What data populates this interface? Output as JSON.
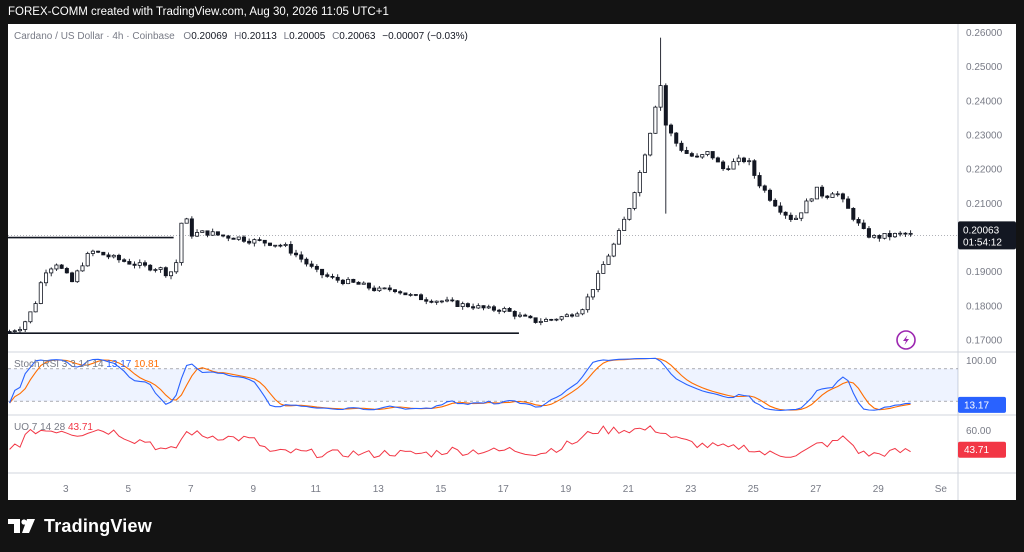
{
  "header": {
    "text": "FOREX-COMM created with TradingView.com, Aug 30, 2026 11:05 UTC+1"
  },
  "legend": {
    "symbol": "Cardano / US Dollar · 4h · Coinbase",
    "o_label": "O",
    "o_value": "0.20069",
    "h_label": "H",
    "h_value": "0.20113",
    "l_label": "L",
    "l_value": "0.20005",
    "c_label": "C",
    "c_value": "0.20063",
    "change": "−0.00007 (−0.03%)"
  },
  "price_tag": {
    "price": "0.20063",
    "countdown": "01:54:12",
    "color": "#131722"
  },
  "indicators": {
    "stoch": {
      "label": "Stoch RSI 3 3 14 14",
      "k_value": "13.17",
      "d_value": "10.81",
      "badge": "13.17",
      "k_color": "#2962ff",
      "d_color": "#ff6d00",
      "band_top": "100.00"
    },
    "uo": {
      "label": "UO 7 14 28",
      "value": "43.71",
      "badge": "43.71",
      "color": "#f23645",
      "axis_label": "60.00"
    }
  },
  "footer": {
    "brand": "TradingView",
    "logo": "tradingview-logo-icon"
  },
  "colors": {
    "bull": "#ffffff",
    "bear": "#131722",
    "grid": "#d1d4dc",
    "axis_text": "#787b86",
    "flash_icon": "#9c27b0"
  },
  "chart_data": {
    "type": "candlestick",
    "title": "Cardano / US Dollar · 4h · Coinbase",
    "y_ticks": [
      0.17,
      0.18,
      0.19,
      0.2,
      0.21,
      0.22,
      0.23,
      0.24,
      0.25,
      0.26
    ],
    "y_tick_labels": [
      "0.17000",
      "0.18000",
      "0.19000",
      "0.20000",
      "0.21000",
      "0.22000",
      "0.23000",
      "0.24000",
      "0.25000",
      "0.26000"
    ],
    "ylim": [
      0.1665,
      0.2625
    ],
    "x_ticks": [
      {
        "day": 3,
        "label": "3"
      },
      {
        "day": 5,
        "label": "5"
      },
      {
        "day": 7,
        "label": "7"
      },
      {
        "day": 9,
        "label": "9"
      },
      {
        "day": 11,
        "label": "11"
      },
      {
        "day": 13,
        "label": "13"
      },
      {
        "day": 15,
        "label": "15"
      },
      {
        "day": 17,
        "label": "17"
      },
      {
        "day": 19,
        "label": "19"
      },
      {
        "day": 21,
        "label": "21"
      },
      {
        "day": 23,
        "label": "23"
      },
      {
        "day": 25,
        "label": "25"
      },
      {
        "day": 27,
        "label": "27"
      },
      {
        "day": 29,
        "label": "29"
      },
      {
        "day": 31,
        "label": "Se"
      }
    ],
    "xlim": [
      1.15,
      31.55
    ],
    "current_price": 0.20063,
    "levels": [
      {
        "price": 0.2,
        "from_day": 1.15,
        "to_day": 6.45,
        "name": "resistance"
      },
      {
        "price": 0.172,
        "from_day": 1.15,
        "to_day": 17.5,
        "name": "support"
      }
    ],
    "anchors": [
      [
        1.2,
        0.1725
      ],
      [
        1.6,
        0.174
      ],
      [
        2.0,
        0.18
      ],
      [
        2.3,
        0.19
      ],
      [
        2.7,
        0.1925
      ],
      [
        3.2,
        0.187
      ],
      [
        3.5,
        0.192
      ],
      [
        3.8,
        0.196
      ],
      [
        4.2,
        0.195
      ],
      [
        4.7,
        0.1935
      ],
      [
        5.1,
        0.1925
      ],
      [
        5.5,
        0.1915
      ],
      [
        6.0,
        0.191
      ],
      [
        6.3,
        0.189
      ],
      [
        6.55,
        0.193
      ],
      [
        6.75,
        0.208
      ],
      [
        7.0,
        0.201
      ],
      [
        7.5,
        0.2015
      ],
      [
        8.0,
        0.2005
      ],
      [
        8.5,
        0.2
      ],
      [
        9.0,
        0.199
      ],
      [
        9.5,
        0.1985
      ],
      [
        10.0,
        0.1975
      ],
      [
        10.5,
        0.194
      ],
      [
        11.0,
        0.19
      ],
      [
        11.5,
        0.188
      ],
      [
        12.0,
        0.187
      ],
      [
        12.5,
        0.186
      ],
      [
        13.0,
        0.1845
      ],
      [
        13.5,
        0.185
      ],
      [
        14.0,
        0.183
      ],
      [
        14.5,
        0.182
      ],
      [
        15.0,
        0.1815
      ],
      [
        15.5,
        0.1805
      ],
      [
        16.0,
        0.18
      ],
      [
        16.5,
        0.179
      ],
      [
        17.0,
        0.179
      ],
      [
        17.5,
        0.177
      ],
      [
        18.0,
        0.1755
      ],
      [
        18.5,
        0.176
      ],
      [
        19.0,
        0.177
      ],
      [
        19.5,
        0.179
      ],
      [
        19.8,
        0.184
      ],
      [
        20.2,
        0.192
      ],
      [
        20.6,
        0.199
      ],
      [
        21.0,
        0.208
      ],
      [
        21.4,
        0.22
      ],
      [
        21.8,
        0.235
      ],
      [
        22.0,
        0.247
      ],
      [
        22.2,
        0.233
      ],
      [
        22.5,
        0.228
      ],
      [
        22.8,
        0.225
      ],
      [
        23.2,
        0.223
      ],
      [
        23.6,
        0.225
      ],
      [
        24.0,
        0.22
      ],
      [
        24.4,
        0.222
      ],
      [
        24.8,
        0.223
      ],
      [
        25.1,
        0.217
      ],
      [
        25.5,
        0.212
      ],
      [
        25.9,
        0.208
      ],
      [
        26.3,
        0.205
      ],
      [
        26.7,
        0.21
      ],
      [
        27.0,
        0.214
      ],
      [
        27.3,
        0.212
      ],
      [
        27.6,
        0.214
      ],
      [
        27.9,
        0.21
      ],
      [
        28.2,
        0.206
      ],
      [
        28.5,
        0.202
      ],
      [
        28.8,
        0.2
      ],
      [
        29.3,
        0.2005
      ],
      [
        29.8,
        0.201
      ],
      [
        30.2,
        0.2006
      ]
    ],
    "stoch_ylim": [
      0,
      100
    ],
    "uo_ylim": [
      25,
      72
    ]
  }
}
